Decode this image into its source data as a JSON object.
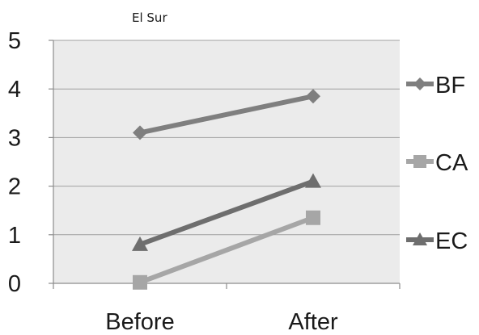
{
  "chart_data": {
    "type": "line",
    "title": "El Sur",
    "xlabel": "",
    "ylabel": "",
    "categories": [
      "Before",
      "After"
    ],
    "ylim": [
      0,
      5
    ],
    "yticks": [
      0,
      1,
      2,
      3,
      4,
      5
    ],
    "grid": true,
    "legend_position": "right",
    "plot_background": "#ebebeb",
    "series": [
      {
        "name": "BF",
        "values": [
          3.1,
          3.85
        ],
        "color": "#7f7f7f",
        "marker": "diamond"
      },
      {
        "name": "CA",
        "values": [
          0.02,
          1.35
        ],
        "color": "#a6a6a6",
        "marker": "square"
      },
      {
        "name": "EC",
        "values": [
          0.8,
          2.1
        ],
        "color": "#6e6e6e",
        "marker": "triangle"
      }
    ]
  }
}
